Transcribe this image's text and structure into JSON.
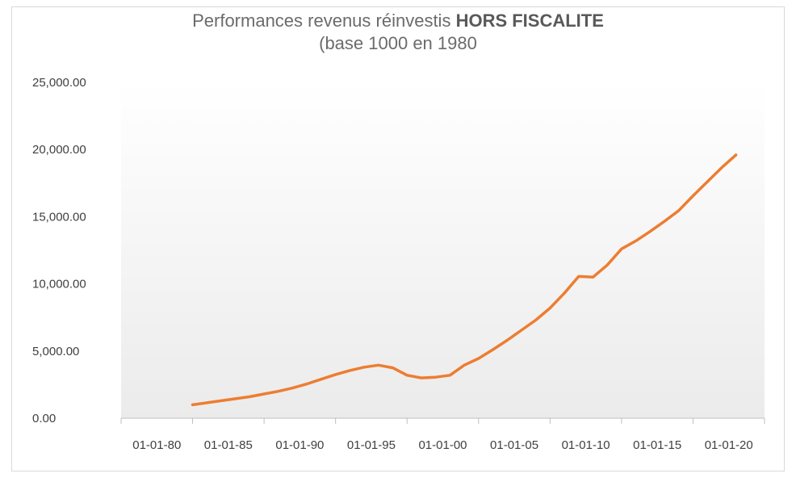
{
  "chart_data": {
    "type": "line",
    "title_line1_prefix": "Performances revenus réinvestis ",
    "title_line1_bold": "HORS FISCALITE",
    "title_line2": "(base 1000 en 1980",
    "xlabel": "",
    "ylabel": "",
    "ylim": [
      0,
      25000
    ],
    "y_ticks": [
      "0.00",
      "5,000.00",
      "10,000.00",
      "15,000.00",
      "20,000.00",
      "25,000.00"
    ],
    "x_ticks": [
      "01-01-80",
      "01-01-85",
      "01-01-90",
      "01-01-95",
      "01-01-00",
      "01-01-05",
      "01-01-10",
      "01-01-15",
      "01-01-20"
    ],
    "grid": false,
    "legend": "none",
    "line_color": "#ed7d31",
    "series": [
      {
        "values": [
          [
            1980,
            1000
          ],
          [
            1981,
            1150
          ],
          [
            1982,
            1300
          ],
          [
            1983,
            1450
          ],
          [
            1984,
            1600
          ],
          [
            1985,
            1800
          ],
          [
            1986,
            2000
          ],
          [
            1987,
            2250
          ],
          [
            1988,
            2550
          ],
          [
            1989,
            2900
          ],
          [
            1990,
            3250
          ],
          [
            1991,
            3550
          ],
          [
            1992,
            3800
          ],
          [
            1993,
            3950
          ],
          [
            1994,
            3750
          ],
          [
            1995,
            3200
          ],
          [
            1996,
            3000
          ],
          [
            1997,
            3050
          ],
          [
            1998,
            3200
          ],
          [
            1999,
            3950
          ],
          [
            2000,
            4450
          ],
          [
            2001,
            5100
          ],
          [
            2002,
            5800
          ],
          [
            2003,
            6550
          ],
          [
            2004,
            7300
          ],
          [
            2005,
            8200
          ],
          [
            2006,
            9300
          ],
          [
            2007,
            10550
          ],
          [
            2008,
            10500
          ],
          [
            2009,
            11400
          ],
          [
            2010,
            12600
          ],
          [
            2011,
            13200
          ],
          [
            2012,
            13900
          ],
          [
            2013,
            14650
          ],
          [
            2014,
            15450
          ],
          [
            2015,
            16550
          ],
          [
            2016,
            17600
          ],
          [
            2017,
            18650
          ],
          [
            2018,
            19600
          ]
        ]
      }
    ]
  }
}
